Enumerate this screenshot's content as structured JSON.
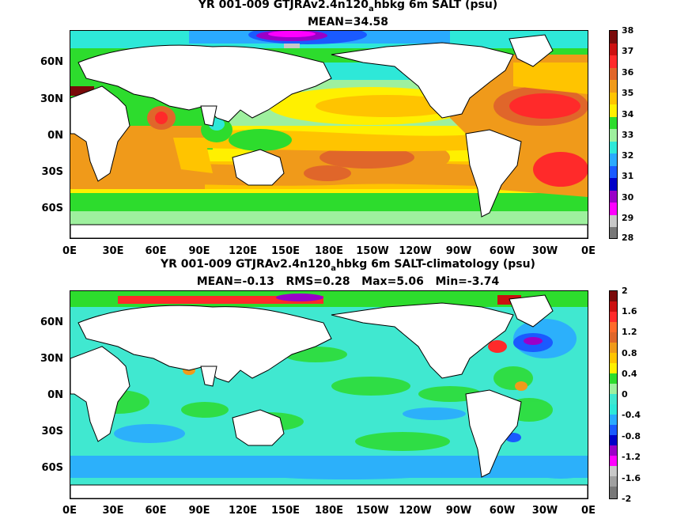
{
  "top": {
    "title_pre": "YR 001-009 GTJRAv2.4n120",
    "title_sub": "a",
    "title_post": "hbkg 6m SALT (psu)",
    "subtitle": "MEAN=34.58",
    "colorbar_labels": [
      "38",
      "37",
      "36",
      "35",
      "34",
      "33",
      "32",
      "31",
      "30",
      "29",
      "28"
    ],
    "colors": [
      "#7a0a0a",
      "#cc1010",
      "#ff2a2a",
      "#e0662a",
      "#f09a1a",
      "#ffc400",
      "#fff000",
      "#2ddc2d",
      "#9ef09e",
      "#2ee8d8",
      "#2aaaff",
      "#1a5aff",
      "#0000c8",
      "#9a00c8",
      "#ff00ff",
      "#c8c8c8",
      "#787878"
    ]
  },
  "bottom": {
    "title_pre": "YR 001-009 GTJRAv2.4n120",
    "title_sub": "a",
    "title_post": "hbkg 6m SALT-climatology (psu)",
    "stats": "MEAN=-0.13   RMS=0.28   Max=5.06   Min=-3.74",
    "colorbar_labels": [
      "2",
      "1.6",
      "1.2",
      "0.8",
      "0.4",
      "0",
      "-0.4",
      "-0.8",
      "-1.2",
      "-1.6",
      "-2"
    ]
  },
  "lat_labels": [
    "60N",
    "30N",
    "0N",
    "30S",
    "60S"
  ],
  "lon_labels": [
    "0E",
    "30E",
    "60E",
    "90E",
    "120E",
    "150E",
    "180E",
    "150W",
    "120W",
    "90W",
    "60W",
    "30W",
    "0E"
  ]
}
